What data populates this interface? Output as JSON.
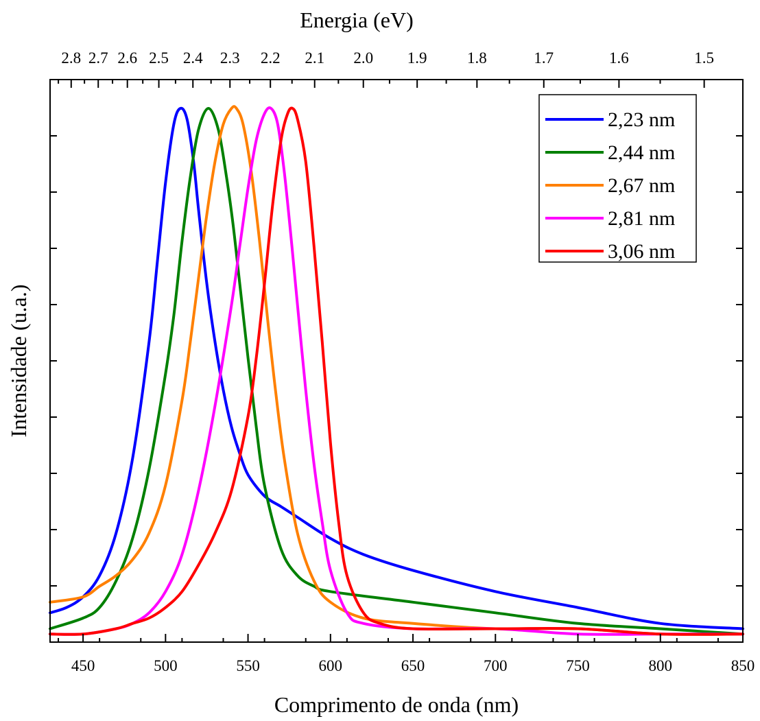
{
  "chart_data": {
    "type": "line",
    "xlabel": "Comprimento de onda (nm)",
    "x2label": "Energia (eV)",
    "ylabel": "Intensidade (u.a.)",
    "xlim": [
      430,
      850
    ],
    "ylim": [
      0,
      1.0
    ],
    "grid": false,
    "legend_position": "top-right",
    "x_ticks": [
      450,
      500,
      550,
      600,
      650,
      700,
      750,
      800,
      850
    ],
    "x_tick_labels": [
      "450",
      "500",
      "550",
      "600",
      "650",
      "700",
      "750",
      "800",
      "850"
    ],
    "x2_ticks": [
      2.8,
      2.7,
      2.6,
      2.5,
      2.4,
      2.3,
      2.2,
      2.1,
      2.0,
      1.9,
      1.8,
      1.7,
      1.6,
      1.5
    ],
    "x2_tick_labels": [
      "2.8",
      "2.7",
      "2.6",
      "2.5",
      "2.4",
      "2.3",
      "2.2",
      "2.1",
      "2.0",
      "1.9",
      "1.8",
      "1.7",
      "1.6",
      "1.5"
    ],
    "series": [
      {
        "name": "2,23 nm",
        "color": "#0000ff",
        "x": [
          430,
          440,
          450,
          460,
          470,
          480,
          490,
          495,
          500,
          505,
          509,
          513,
          517,
          520,
          525,
          530,
          535,
          540,
          545,
          550,
          560,
          570,
          580,
          600,
          620,
          650,
          700,
          750,
          800,
          850
        ],
        "y": [
          0.05,
          0.06,
          0.08,
          0.12,
          0.2,
          0.34,
          0.56,
          0.71,
          0.86,
          0.97,
          1.0,
          0.98,
          0.9,
          0.81,
          0.67,
          0.56,
          0.47,
          0.4,
          0.35,
          0.31,
          0.27,
          0.25,
          0.23,
          0.19,
          0.16,
          0.13,
          0.09,
          0.06,
          0.03,
          0.02
        ]
      },
      {
        "name": "2,44 nm",
        "color": "#008000",
        "x": [
          430,
          450,
          460,
          470,
          480,
          490,
          500,
          505,
          510,
          515,
          520,
          526,
          532,
          537,
          541,
          545,
          550,
          555,
          560,
          570,
          580,
          590,
          600,
          650,
          700,
          750,
          800,
          850
        ],
        "y": [
          0.02,
          0.04,
          0.06,
          0.11,
          0.19,
          0.32,
          0.5,
          0.61,
          0.75,
          0.87,
          0.96,
          1.0,
          0.96,
          0.87,
          0.78,
          0.67,
          0.53,
          0.4,
          0.29,
          0.17,
          0.12,
          0.1,
          0.09,
          0.07,
          0.05,
          0.03,
          0.02,
          0.01
        ]
      },
      {
        "name": "2,67 nm",
        "color": "#ff8000",
        "x": [
          430,
          450,
          460,
          470,
          480,
          490,
          500,
          510,
          515,
          520,
          525,
          530,
          535,
          540,
          543,
          547,
          552,
          557,
          562,
          567,
          572,
          580,
          590,
          600,
          620,
          650,
          700,
          750,
          800,
          850
        ],
        "y": [
          0.07,
          0.08,
          0.1,
          0.12,
          0.15,
          0.2,
          0.29,
          0.45,
          0.56,
          0.68,
          0.8,
          0.9,
          0.97,
          1.0,
          1.0,
          0.97,
          0.88,
          0.75,
          0.6,
          0.46,
          0.34,
          0.2,
          0.11,
          0.07,
          0.04,
          0.03,
          0.02,
          0.02,
          0.01,
          0.01
        ]
      },
      {
        "name": "2,81 nm",
        "color": "#ff00ff",
        "x": [
          430,
          450,
          470,
          480,
          490,
          500,
          510,
          520,
          530,
          540,
          545,
          550,
          555,
          560,
          564,
          568,
          572,
          576,
          580,
          585,
          590,
          595,
          600,
          610,
          620,
          650,
          700,
          750,
          800,
          850
        ],
        "y": [
          0.01,
          0.01,
          0.02,
          0.03,
          0.05,
          0.09,
          0.16,
          0.28,
          0.44,
          0.63,
          0.74,
          0.85,
          0.94,
          0.99,
          1.0,
          0.97,
          0.88,
          0.76,
          0.63,
          0.47,
          0.33,
          0.22,
          0.13,
          0.05,
          0.03,
          0.02,
          0.02,
          0.01,
          0.01,
          0.01
        ]
      },
      {
        "name": "3,06 nm",
        "color": "#ff0000",
        "x": [
          430,
          450,
          470,
          480,
          490,
          500,
          510,
          520,
          530,
          540,
          550,
          555,
          560,
          565,
          570,
          574,
          577,
          580,
          585,
          590,
          595,
          600,
          605,
          610,
          620,
          630,
          650,
          700,
          750,
          800,
          850
        ],
        "y": [
          0.01,
          0.01,
          0.02,
          0.03,
          0.04,
          0.06,
          0.09,
          0.14,
          0.2,
          0.28,
          0.42,
          0.53,
          0.67,
          0.82,
          0.94,
          0.99,
          1.0,
          0.98,
          0.9,
          0.74,
          0.56,
          0.37,
          0.22,
          0.12,
          0.05,
          0.03,
          0.02,
          0.02,
          0.02,
          0.01,
          0.01
        ]
      }
    ]
  }
}
